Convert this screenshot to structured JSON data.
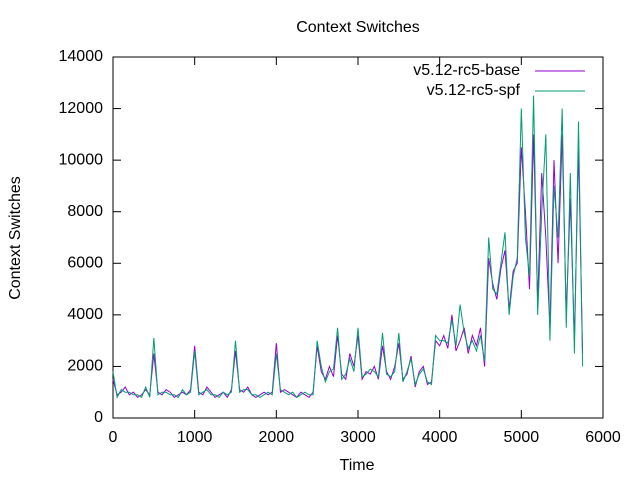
{
  "chart_data": {
    "type": "line",
    "title": "Context Switches",
    "x_label": "Time",
    "y_label": "Context Switches",
    "xlim": [
      0,
      6000
    ],
    "xticks": [
      0,
      1000,
      2000,
      3000,
      4000,
      5000,
      6000
    ],
    "ylim": [
      0,
      14000
    ],
    "yticks": [
      0,
      2000,
      4000,
      6000,
      8000,
      10000,
      12000,
      14000
    ],
    "legend": "top-right",
    "x": [
      0,
      50,
      100,
      150,
      200,
      250,
      300,
      350,
      400,
      450,
      500,
      550,
      600,
      650,
      700,
      750,
      800,
      850,
      900,
      950,
      1000,
      1050,
      1100,
      1150,
      1200,
      1250,
      1300,
      1350,
      1400,
      1450,
      1500,
      1550,
      1600,
      1650,
      1700,
      1750,
      1800,
      1850,
      1900,
      1950,
      2000,
      2050,
      2100,
      2150,
      2200,
      2250,
      2300,
      2350,
      2400,
      2450,
      2500,
      2550,
      2600,
      2650,
      2700,
      2750,
      2800,
      2850,
      2900,
      2950,
      3000,
      3050,
      3100,
      3150,
      3200,
      3250,
      3300,
      3350,
      3400,
      3450,
      3500,
      3550,
      3600,
      3650,
      3700,
      3750,
      3800,
      3850,
      3900,
      3950,
      4000,
      4050,
      4100,
      4150,
      4200,
      4250,
      4300,
      4350,
      4400,
      4450,
      4500,
      4550,
      4600,
      4650,
      4700,
      4750,
      4800,
      4850,
      4900,
      4950,
      5000,
      5050,
      5100,
      5150,
      5200,
      5250,
      5300,
      5350,
      5400,
      5450,
      5500,
      5550,
      5600,
      5650,
      5700,
      5750
    ],
    "series": [
      {
        "name": "v5.12-rc5-base",
        "color": "#9400d3",
        "values": [
          1500,
          900,
          1000,
          1200,
          900,
          1000,
          800,
          900,
          1100,
          900,
          2500,
          1000,
          900,
          1100,
          1000,
          800,
          900,
          1000,
          900,
          1100,
          2800,
          1000,
          900,
          1200,
          1000,
          800,
          900,
          1000,
          800,
          1100,
          2600,
          1100,
          1000,
          1200,
          900,
          800,
          900,
          1000,
          900,
          1000,
          2900,
          1000,
          1100,
          1000,
          900,
          800,
          1000,
          900,
          800,
          1000,
          2800,
          1800,
          1500,
          2000,
          1600,
          3200,
          1700,
          1500,
          2500,
          2000,
          3200,
          1500,
          1800,
          1700,
          2000,
          1500,
          2800,
          1800,
          1500,
          2000,
          2900,
          1500,
          1700,
          2400,
          1200,
          1800,
          2000,
          1300,
          1400,
          3000,
          2800,
          3200,
          2700,
          4000,
          2600,
          3000,
          3500,
          2500,
          3200,
          2800,
          3500,
          2000,
          6200,
          5200,
          4600,
          5800,
          6500,
          4200,
          5700,
          6000,
          10500,
          8000,
          5000,
          11000,
          4500,
          9500,
          7000,
          3500,
          10000,
          6000,
          11000,
          4000,
          8500,
          3000,
          10500,
          2500
        ]
      },
      {
        "name": "v5.12-rc5-spf",
        "color": "#009e73",
        "values": [
          1800,
          800,
          1100,
          1000,
          1000,
          900,
          900,
          800,
          1200,
          800,
          3100,
          900,
          1000,
          1000,
          900,
          900,
          800,
          1100,
          900,
          1000,
          2600,
          900,
          1000,
          1100,
          900,
          900,
          800,
          1000,
          900,
          1000,
          3000,
          1000,
          1100,
          1100,
          900,
          900,
          800,
          900,
          1000,
          900,
          2500,
          1100,
          1000,
          900,
          1000,
          800,
          900,
          1000,
          900,
          900,
          3000,
          2000,
          1400,
          1800,
          1900,
          3500,
          1500,
          1700,
          2300,
          1800,
          3500,
          1600,
          1700,
          1900,
          1800,
          1600,
          3300,
          1700,
          1600,
          1800,
          3300,
          1400,
          1800,
          2300,
          1300,
          1700,
          1900,
          1400,
          1300,
          3200,
          3000,
          3000,
          2900,
          3800,
          2800,
          4400,
          3300,
          2700,
          3000,
          2600,
          3200,
          2200,
          7000,
          5000,
          4800,
          6000,
          7200,
          4000,
          5500,
          6200,
          12000,
          7000,
          5500,
          12500,
          4000,
          8000,
          11000,
          3000,
          9000,
          7000,
          12000,
          3500,
          9500,
          2500,
          11500,
          2000
        ]
      }
    ]
  }
}
